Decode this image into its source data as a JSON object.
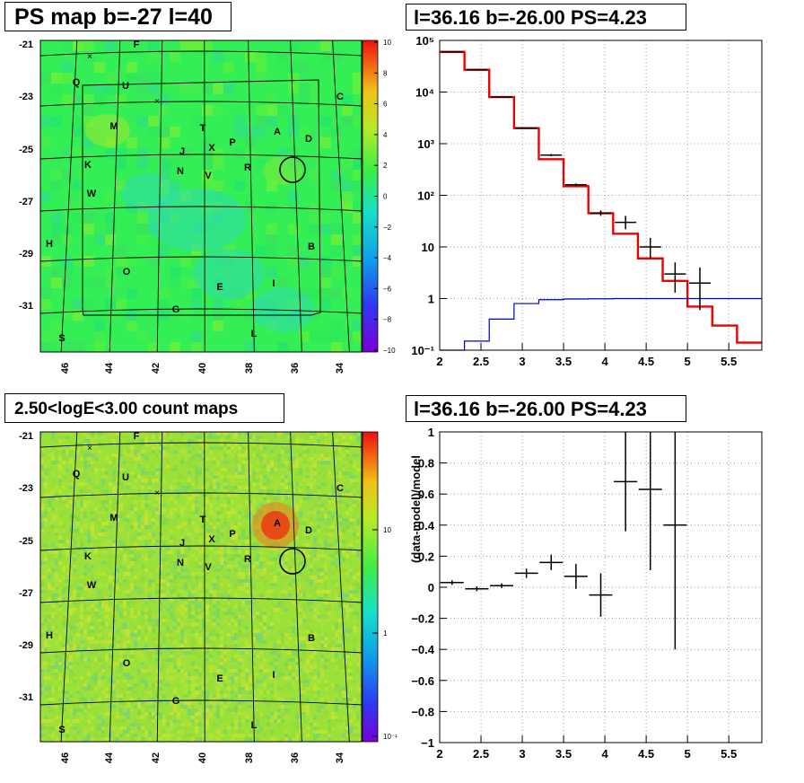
{
  "panels": {
    "ps_map_title": "PS map b=-27 l=40",
    "spectrum_title": "l=36.16 b=-26.00 PS=4.23",
    "count_map_title": "2.50<logE<3.00 count maps",
    "residual_title": "l=36.16 b=-26.00 PS=4.23"
  },
  "sky_maps": {
    "lon_ticks": [
      "46",
      "44",
      "42",
      "40",
      "38",
      "36",
      "34"
    ],
    "lat_ticks": [
      "-21",
      "-23",
      "-25",
      "-27",
      "-29",
      "-31"
    ],
    "source_labels": [
      "F",
      "Q",
      "U",
      "C",
      "M",
      "T",
      "A",
      "D",
      "J",
      "X",
      "P",
      "K",
      "N",
      "V",
      "R",
      "W",
      "H",
      "B",
      "O",
      "E",
      "I",
      "G",
      "L",
      "S"
    ],
    "ps_colorbar_ticks": [
      "10",
      "8",
      "6",
      "4",
      "2",
      "0",
      "−2",
      "−4",
      "−6",
      "−8",
      "−10"
    ],
    "count_colorbar_ticks": [
      "10",
      "1",
      "10⁻¹"
    ],
    "colors": {
      "ps_background": "#33ee55",
      "count_background": "#9ae23a",
      "hotspot": "#ee3311"
    }
  },
  "chart_data": [
    {
      "type": "line",
      "panel": "spectrum",
      "title": "l=36.16 b=-26.00 PS=4.23",
      "log_y": true,
      "xlim": [
        2,
        5.9
      ],
      "ylim": [
        0.1,
        100000
      ],
      "x_ticks": [
        "2",
        "2.5",
        "3",
        "3.5",
        "4",
        "4.5",
        "5",
        "5.5"
      ],
      "y_ticks": [
        "10⁻¹",
        "1",
        "10",
        "10²",
        "10³",
        "10⁴",
        "10⁵"
      ],
      "bin_edges": [
        2.0,
        2.3,
        2.6,
        2.9,
        3.2,
        3.5,
        3.8,
        4.1,
        4.4,
        4.7,
        5.0,
        5.3,
        5.6,
        5.9
      ],
      "series": [
        {
          "role": "model",
          "color": "#ee0000",
          "values": [
            60000,
            27000,
            8000,
            2000,
            500,
            150,
            45,
            18,
            6,
            2.2,
            0.7,
            0.3,
            0.14
          ]
        },
        {
          "role": "point-source",
          "color": "#0000cc",
          "values": [
            0.1,
            0.15,
            0.4,
            0.8,
            0.95,
            0.98,
            0.99,
            1.0,
            1.0,
            1.0,
            1.0,
            1.0,
            1.0
          ]
        },
        {
          "role": "data",
          "color": "#000000",
          "x": [
            2.15,
            2.45,
            2.75,
            3.05,
            3.35,
            3.65,
            3.95,
            4.25,
            4.55,
            4.85,
            5.15
          ],
          "y": [
            60000,
            27000,
            8000,
            2000,
            600,
            160,
            45,
            30,
            10,
            3,
            2
          ],
          "y_low": [
            59000,
            26500,
            7800,
            1950,
            570,
            150,
            40,
            22,
            6,
            1.3,
            0.6
          ],
          "y_high": [
            61000,
            27500,
            8200,
            2050,
            630,
            170,
            51,
            40,
            15,
            5,
            4
          ]
        }
      ]
    },
    {
      "type": "scatter",
      "panel": "residual",
      "title": "l=36.16 b=-26.00 PS=4.23",
      "ylabel": "(data-model)/model",
      "xlim": [
        2,
        5.9
      ],
      "ylim": [
        -1,
        1
      ],
      "x_ticks": [
        "2",
        "2.5",
        "3",
        "3.5",
        "4",
        "4.5",
        "5",
        "5.5"
      ],
      "y_ticks": [
        "−1",
        "−0.8",
        "−0.6",
        "−0.4",
        "−0.2",
        "0",
        "0.2",
        "0.4",
        "0.6",
        "0.8",
        "1"
      ],
      "series": [
        {
          "role": "residual",
          "color": "#000000",
          "x": [
            2.15,
            2.45,
            2.75,
            3.05,
            3.35,
            3.65,
            3.95,
            4.25,
            4.55,
            4.85
          ],
          "y": [
            0.03,
            -0.01,
            0.01,
            0.09,
            0.16,
            0.07,
            -0.05,
            0.68,
            0.63,
            0.4
          ],
          "y_err": [
            0.015,
            0.015,
            0.015,
            0.03,
            0.05,
            0.08,
            0.14,
            0.32,
            0.52,
            0.8
          ]
        }
      ]
    }
  ]
}
